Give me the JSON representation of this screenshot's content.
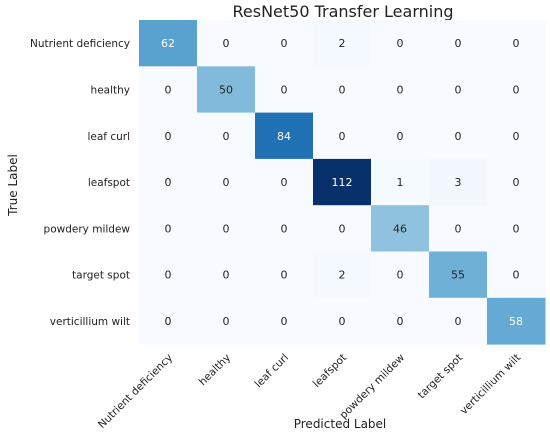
{
  "chart_data": {
    "type": "heatmap",
    "title": "ResNet50 Transfer Learning",
    "xlabel": "Predicted Label",
    "ylabel": "True Label",
    "x_categories": [
      "Nutrient deficiency",
      "healthy",
      "leaf curl",
      "leafspot",
      "powdery mildew",
      "target spot",
      "verticillium wilt"
    ],
    "y_categories": [
      "Nutrient deficiency",
      "healthy",
      "leaf curl",
      "leafspot",
      "powdery mildew",
      "target spot",
      "verticillium wilt"
    ],
    "values": [
      [
        62,
        0,
        0,
        2,
        0,
        0,
        0
      ],
      [
        0,
        50,
        0,
        0,
        0,
        0,
        0
      ],
      [
        0,
        0,
        84,
        0,
        0,
        0,
        0
      ],
      [
        0,
        0,
        0,
        112,
        1,
        3,
        0
      ],
      [
        0,
        0,
        0,
        0,
        46,
        0,
        0
      ],
      [
        0,
        0,
        0,
        2,
        0,
        55,
        0
      ],
      [
        0,
        0,
        0,
        0,
        0,
        0,
        58
      ]
    ],
    "colormap": [
      "#f7fbff",
      "#deebf7",
      "#c6dbef",
      "#9ecae1",
      "#6baed6",
      "#4292c6",
      "#2171b5",
      "#08519c",
      "#08306b"
    ],
    "legend": false,
    "grid": false
  }
}
